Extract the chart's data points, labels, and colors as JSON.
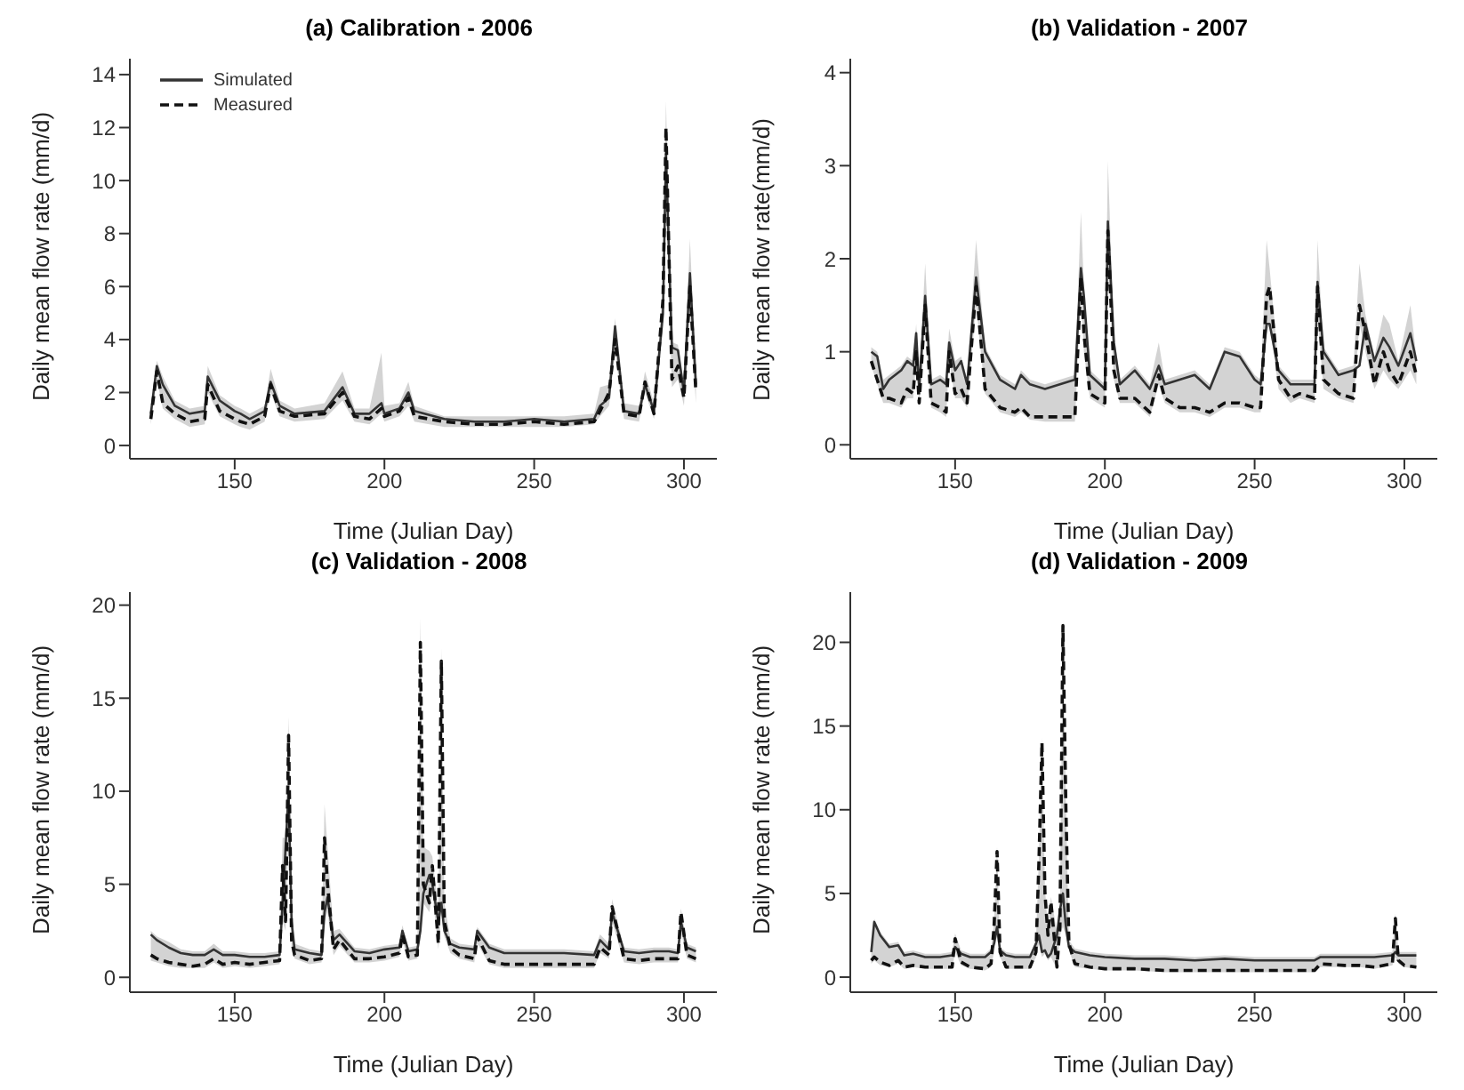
{
  "chart_data": [
    {
      "type": "line",
      "title": "(a) Calibration - 2006",
      "xlabel": "Time (Julian Day)",
      "ylabel": "Daily mean flow rate (mm/d)",
      "xlim": [
        115,
        311
      ],
      "xticks": [
        150,
        200,
        250,
        300
      ],
      "ylim": [
        -0.5,
        14.6
      ],
      "yticks": [
        0,
        2,
        4,
        6,
        8,
        10,
        12,
        14
      ],
      "legend": "top left",
      "x": [
        122,
        124,
        126,
        130,
        135,
        140,
        141,
        145,
        150,
        152,
        155,
        160,
        162,
        165,
        170,
        180,
        186,
        190,
        195,
        199,
        200,
        205,
        208,
        210,
        220,
        230,
        240,
        250,
        260,
        270,
        272,
        275,
        277,
        280,
        285,
        287,
        290,
        293,
        294,
        296,
        298,
        300,
        302,
        304
      ],
      "series": [
        {
          "name": "Simulated",
          "color": "#333333",
          "line_style": "solid",
          "values": [
            1.2,
            3.0,
            2.3,
            1.5,
            1.2,
            1.3,
            2.6,
            1.7,
            1.3,
            1.2,
            1.0,
            1.3,
            2.4,
            1.5,
            1.2,
            1.3,
            2.2,
            1.2,
            1.2,
            1.6,
            1.2,
            1.4,
            2.0,
            1.3,
            1.0,
            0.9,
            0.9,
            1.0,
            0.9,
            1.0,
            1.5,
            1.8,
            4.5,
            1.3,
            1.2,
            2.3,
            1.3,
            5,
            11,
            3.7,
            3.6,
            2.0,
            6.5,
            2.3
          ],
          "lower": [
            0.8,
            2.5,
            1.4,
            1.0,
            0.7,
            0.8,
            2.0,
            1.1,
            0.8,
            0.7,
            0.6,
            0.9,
            2.0,
            1.1,
            0.9,
            1.0,
            1.7,
            0.9,
            0.8,
            1.2,
            0.9,
            1.1,
            1.5,
            0.9,
            0.7,
            0.7,
            0.7,
            0.7,
            0.7,
            0.8,
            1.1,
            1.5,
            3.5,
            1.0,
            0.9,
            2.0,
            1.0,
            4.5,
            9,
            2.2,
            2.5,
            1.5,
            5,
            1.6
          ],
          "upper": [
            1.4,
            3.2,
            2.6,
            1.7,
            1.4,
            1.5,
            3.0,
            1.9,
            1.5,
            1.4,
            1.2,
            1.5,
            2.9,
            1.7,
            1.4,
            1.6,
            2.8,
            1.4,
            1.4,
            3.5,
            1.5,
            1.6,
            2.4,
            1.5,
            1.1,
            1.1,
            1.1,
            1.1,
            1.1,
            1.2,
            2.2,
            2.3,
            4.8,
            1.6,
            1.5,
            2.8,
            1.6,
            6,
            13,
            3.9,
            3.8,
            2.2,
            7.8,
            2.6
          ]
        },
        {
          "name": "Measured",
          "color": "#111111",
          "line_style": "dashed",
          "values": [
            1.0,
            2.8,
            1.6,
            1.2,
            0.9,
            1.0,
            2.3,
            1.3,
            1.0,
            0.9,
            0.8,
            1.1,
            2.3,
            1.3,
            1.1,
            1.2,
            2.0,
            1.1,
            1.0,
            1.4,
            1.1,
            1.3,
            1.8,
            1.1,
            0.9,
            0.8,
            0.8,
            0.9,
            0.8,
            0.9,
            1.3,
            2.0,
            4.0,
            1.2,
            1.1,
            2.4,
            1.2,
            5.5,
            12,
            2.5,
            3.0,
            1.8,
            6.0,
            2.0
          ]
        }
      ]
    },
    {
      "type": "line",
      "title": "(b) Validation - 2007",
      "xlabel": "Time (Julian Day)",
      "ylabel": "Daily mean flow rate(mm/d)",
      "xlim": [
        115,
        311
      ],
      "xticks": [
        150,
        200,
        250,
        300
      ],
      "ylim": [
        -0.15,
        4.15
      ],
      "yticks": [
        0,
        1,
        2,
        3,
        4
      ],
      "x": [
        122,
        124,
        126,
        128,
        132,
        134,
        136,
        137,
        138,
        140,
        142,
        145,
        147,
        148,
        150,
        152,
        154,
        157,
        160,
        165,
        170,
        172,
        175,
        180,
        185,
        190,
        192,
        193,
        195,
        200,
        201,
        203,
        205,
        210,
        215,
        218,
        220,
        225,
        230,
        235,
        240,
        245,
        250,
        252,
        254,
        255,
        258,
        262,
        265,
        270,
        271,
        273,
        278,
        283,
        285,
        287,
        290,
        293,
        295,
        298,
        302,
        304
      ],
      "series": [
        {
          "color": "#333333",
          "line_style": "solid",
          "values": [
            1.0,
            0.95,
            0.6,
            0.7,
            0.8,
            0.9,
            0.85,
            1.2,
            0.6,
            1.6,
            0.65,
            0.7,
            0.65,
            1.1,
            0.8,
            0.9,
            0.65,
            1.8,
            1.0,
            0.7,
            0.6,
            0.75,
            0.65,
            0.6,
            0.65,
            0.7,
            1.9,
            1.6,
            0.75,
            0.6,
            2.4,
            1.1,
            0.65,
            0.8,
            0.6,
            0.85,
            0.65,
            0.7,
            0.75,
            0.6,
            1.0,
            0.95,
            0.7,
            0.65,
            1.3,
            1.3,
            0.8,
            0.65,
            0.65,
            0.65,
            1.75,
            1.0,
            0.75,
            0.8,
            0.85,
            1.3,
            0.9,
            1.15,
            1.05,
            0.85,
            1.2,
            0.9
          ],
          "lower": [
            0.85,
            0.65,
            0.45,
            0.45,
            0.4,
            0.5,
            0.5,
            0.9,
            0.4,
            1.3,
            0.4,
            0.35,
            0.3,
            0.9,
            0.5,
            0.5,
            0.4,
            1.5,
            0.55,
            0.35,
            0.3,
            0.35,
            0.27,
            0.25,
            0.25,
            0.25,
            1.6,
            1.0,
            0.5,
            0.4,
            2.0,
            0.7,
            0.45,
            0.45,
            0.3,
            0.65,
            0.45,
            0.35,
            0.35,
            0.3,
            0.4,
            0.4,
            0.35,
            0.35,
            1.2,
            1.3,
            0.6,
            0.45,
            0.5,
            0.45,
            1.4,
            0.6,
            0.5,
            0.45,
            1.3,
            1.0,
            0.6,
            0.8,
            0.7,
            0.6,
            0.8,
            0.65
          ],
          "upper": [
            1.05,
            1.0,
            0.7,
            0.75,
            0.85,
            0.95,
            0.9,
            1.3,
            0.7,
            1.95,
            0.7,
            0.75,
            0.7,
            1.25,
            0.9,
            0.95,
            0.7,
            2.2,
            1.05,
            0.75,
            0.65,
            0.8,
            0.7,
            0.65,
            0.7,
            0.75,
            2.5,
            1.7,
            0.8,
            0.65,
            3.05,
            1.2,
            0.7,
            0.85,
            0.65,
            1.1,
            0.7,
            0.75,
            0.8,
            0.65,
            1.05,
            1.0,
            0.75,
            0.7,
            2.2,
            1.9,
            0.85,
            0.7,
            0.7,
            0.7,
            2.2,
            1.05,
            0.8,
            0.85,
            1.95,
            1.4,
            0.95,
            1.4,
            1.3,
            0.9,
            1.5,
            0.95
          ]
        },
        {
          "color": "#111111",
          "line_style": "dashed",
          "values": [
            0.9,
            0.7,
            0.5,
            0.5,
            0.45,
            0.6,
            0.55,
            1.0,
            0.45,
            1.5,
            0.45,
            0.4,
            0.35,
            1.0,
            0.55,
            0.6,
            0.45,
            1.7,
            0.6,
            0.4,
            0.35,
            0.4,
            0.3,
            0.3,
            0.3,
            0.3,
            1.8,
            1.2,
            0.55,
            0.45,
            2.3,
            0.8,
            0.5,
            0.5,
            0.35,
            0.75,
            0.5,
            0.4,
            0.4,
            0.35,
            0.45,
            0.45,
            0.4,
            0.4,
            1.6,
            1.7,
            0.7,
            0.5,
            0.55,
            0.5,
            1.7,
            0.7,
            0.55,
            0.5,
            1.5,
            1.2,
            0.65,
            1.0,
            0.8,
            0.65,
            1.0,
            0.75
          ]
        }
      ]
    },
    {
      "type": "line",
      "title": "(c) Validation - 2008",
      "xlabel": "Time (Julian Day)",
      "ylabel": "Daily mean flow rate (mm/d)",
      "xlim": [
        115,
        311
      ],
      "xticks": [
        150,
        200,
        250,
        300
      ],
      "ylim": [
        -0.8,
        20.7
      ],
      "yticks": [
        0,
        5,
        10,
        15,
        20
      ],
      "x": [
        122,
        124,
        128,
        132,
        136,
        140,
        143,
        146,
        150,
        155,
        160,
        165,
        166,
        167,
        168,
        169,
        170,
        175,
        179,
        180,
        181,
        183,
        185,
        190,
        195,
        200,
        205,
        206,
        208,
        211,
        212,
        213,
        215,
        216,
        218,
        219,
        220,
        222,
        225,
        230,
        231,
        235,
        240,
        250,
        260,
        270,
        272,
        275,
        276,
        280,
        285,
        290,
        295,
        298,
        299,
        301,
        304
      ],
      "series": [
        {
          "color": "#333333",
          "line_style": "solid",
          "values": [
            2.3,
            2.0,
            1.6,
            1.3,
            1.2,
            1.2,
            1.5,
            1.2,
            1.2,
            1.1,
            1.1,
            1.2,
            4,
            7,
            10,
            3,
            1.5,
            1.3,
            1.2,
            3.5,
            4.3,
            2.0,
            2.3,
            1.4,
            1.3,
            1.5,
            1.6,
            2.5,
            1.4,
            1.5,
            2.5,
            4.5,
            5.5,
            5,
            3,
            4,
            2.5,
            1.8,
            1.6,
            1.5,
            2.5,
            1.6,
            1.3,
            1.3,
            1.3,
            1.2,
            2.0,
            1.5,
            3.5,
            1.4,
            1.3,
            1.4,
            1.4,
            1.3,
            3.0,
            1.6,
            1.4
          ],
          "lower": [
            0.9,
            0.8,
            0.6,
            0.5,
            0.5,
            0.5,
            0.8,
            0.5,
            0.6,
            0.5,
            0.6,
            0.7,
            3,
            2.5,
            8,
            1.5,
            1.0,
            0.7,
            0.8,
            3,
            3.5,
            1.2,
            1.7,
            0.8,
            0.8,
            0.9,
            1.1,
            2.0,
            0.9,
            1.0,
            2,
            4,
            3.5,
            4.5,
            1.5,
            3.5,
            2.2,
            1.3,
            1.0,
            0.8,
            1.8,
            0.7,
            0.5,
            0.5,
            0.5,
            0.5,
            1.3,
            1.0,
            3,
            0.8,
            0.7,
            0.8,
            0.8,
            0.8,
            2.5,
            1.0,
            0.8
          ],
          "upper": [
            2.5,
            2.2,
            1.9,
            1.5,
            1.4,
            1.4,
            1.8,
            1.4,
            1.4,
            1.3,
            1.3,
            1.4,
            7.5,
            7.5,
            14,
            3.5,
            1.8,
            1.5,
            1.4,
            9.3,
            7,
            2.5,
            2.6,
            1.6,
            1.5,
            1.7,
            1.8,
            2.8,
            1.6,
            1.7,
            19.3,
            7,
            6.8,
            6.5,
            3.5,
            17.7,
            4,
            2.1,
            1.8,
            1.7,
            2.7,
            1.8,
            1.5,
            1.5,
            1.5,
            1.4,
            2.3,
            1.8,
            4.2,
            1.6,
            1.5,
            1.6,
            1.6,
            1.5,
            3.7,
            1.8,
            1.6
          ]
        },
        {
          "color": "#111111",
          "line_style": "dashed",
          "values": [
            1.2,
            1.0,
            0.8,
            0.7,
            0.6,
            0.7,
            1.0,
            0.7,
            0.8,
            0.7,
            0.8,
            0.9,
            6,
            3,
            13,
            2,
            1.2,
            0.9,
            1.0,
            7.5,
            5,
            1.5,
            2.0,
            1.0,
            1.0,
            1.1,
            1.3,
            2.3,
            1.1,
            1.2,
            18,
            5,
            4,
            6,
            1.8,
            17,
            3,
            1.6,
            1.2,
            1.0,
            2.2,
            0.9,
            0.7,
            0.7,
            0.7,
            0.7,
            1.6,
            1.2,
            3.8,
            1.0,
            0.9,
            1.0,
            1.0,
            1.0,
            3.5,
            1.2,
            1.0
          ]
        }
      ]
    },
    {
      "type": "line",
      "title": "(d) Validation - 2009",
      "xlabel": "Time (Julian Day)",
      "ylabel": "Daily mean flow rate (mm/d)",
      "xlim": [
        115,
        311
      ],
      "xticks": [
        150,
        200,
        250,
        300
      ],
      "ylim": [
        -0.9,
        23
      ],
      "yticks": [
        0,
        5,
        10,
        15,
        20
      ],
      "x": [
        122,
        123,
        125,
        128,
        131,
        133,
        136,
        140,
        145,
        149,
        150,
        152,
        155,
        160,
        162,
        163,
        164,
        165,
        167,
        170,
        175,
        177,
        178,
        179,
        180,
        181,
        182,
        184,
        185,
        186,
        187,
        188,
        190,
        195,
        200,
        210,
        220,
        230,
        240,
        250,
        260,
        270,
        272,
        280,
        285,
        290,
        296,
        297,
        298,
        300,
        304
      ],
      "series": [
        {
          "color": "#333333",
          "line_style": "solid",
          "values": [
            1.5,
            3.3,
            2.5,
            1.8,
            1.9,
            1.3,
            1.4,
            1.2,
            1.2,
            1.3,
            1.8,
            1.4,
            1.2,
            1.2,
            1.5,
            2.0,
            3,
            1.6,
            1.3,
            1.2,
            1.2,
            2.0,
            2.5,
            1.5,
            1.6,
            1.2,
            1.4,
            2.5,
            4,
            5,
            3,
            1.8,
            1.5,
            1.3,
            1.2,
            1.1,
            1.1,
            1.0,
            1.1,
            1.0,
            1.0,
            1.0,
            1.2,
            1.2,
            1.2,
            1.2,
            1.3,
            1.5,
            1.3,
            1.3,
            1.3
          ],
          "lower": [
            0.8,
            1.0,
            0.7,
            0.6,
            0.8,
            0.5,
            0.6,
            0.5,
            0.5,
            0.5,
            1.5,
            0.7,
            0.5,
            0.4,
            0.6,
            1.5,
            2.5,
            1.2,
            0.5,
            0.5,
            0.5,
            1.2,
            2,
            1.2,
            1.4,
            1.0,
            1.2,
            0.5,
            2.5,
            3,
            2.5,
            1.6,
            0.6,
            0.5,
            0.4,
            0.4,
            0.3,
            0.3,
            0.3,
            0.3,
            0.3,
            0.3,
            0.6,
            0.6,
            0.6,
            0.5,
            0.7,
            1.2,
            0.8,
            0.6,
            0.5
          ],
          "upper": [
            1.7,
            3.5,
            2.7,
            2.0,
            2.1,
            1.5,
            1.6,
            1.4,
            1.4,
            1.5,
            2.6,
            1.6,
            1.4,
            1.4,
            1.7,
            3.2,
            7.8,
            1.8,
            1.5,
            1.4,
            1.4,
            2.2,
            7.3,
            14.3,
            5.3,
            2.8,
            4.8,
            2.7,
            4.3,
            21.3,
            10.3,
            2.2,
            1.7,
            1.5,
            1.4,
            1.3,
            1.3,
            1.2,
            1.3,
            1.2,
            1.2,
            1.2,
            1.4,
            1.4,
            1.4,
            1.4,
            1.5,
            3.8,
            1.5,
            1.5,
            1.5
          ]
        },
        {
          "color": "#111111",
          "line_style": "dashed",
          "values": [
            1.0,
            1.2,
            0.9,
            0.7,
            1.0,
            0.6,
            0.7,
            0.6,
            0.6,
            0.6,
            2.3,
            0.9,
            0.6,
            0.5,
            0.8,
            3,
            7.5,
            1.5,
            0.6,
            0.6,
            0.6,
            1.5,
            7,
            14,
            5,
            2.5,
            4.5,
            0.6,
            3,
            21,
            10,
            2,
            0.8,
            0.6,
            0.5,
            0.5,
            0.4,
            0.4,
            0.4,
            0.4,
            0.4,
            0.4,
            0.8,
            0.7,
            0.7,
            0.6,
            0.8,
            3.5,
            1.0,
            0.7,
            0.6
          ]
        }
      ]
    }
  ]
}
